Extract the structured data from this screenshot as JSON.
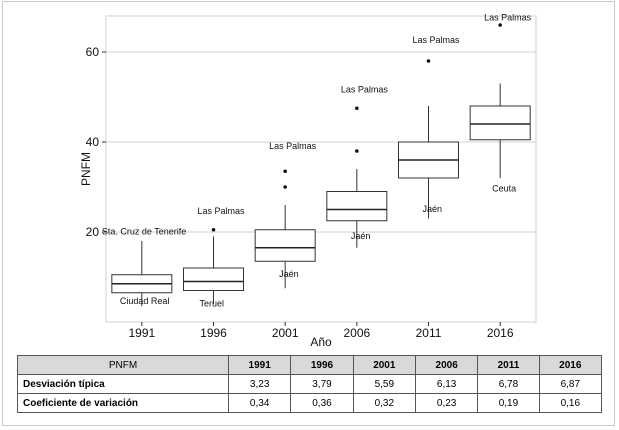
{
  "chart_data": {
    "type": "box",
    "ylabel": "PNFM",
    "xlabel": "Año",
    "ylim": [
      0,
      68
    ],
    "yticks": [
      20,
      40,
      60
    ],
    "grid": true,
    "categories": [
      "1991",
      "1996",
      "2001",
      "2006",
      "2011",
      "2016"
    ],
    "boxes": [
      {
        "year": "1991",
        "whisker_low": 3.5,
        "q1": 6.5,
        "median": 8.5,
        "q3": 10.5,
        "whisker_high": 18,
        "outliers": [],
        "labels": [
          {
            "text": "Sta. Cruz de Tenerife",
            "value": 19.5,
            "dx": -40
          },
          {
            "text": "Ciudad Real",
            "value": 4,
            "dx": -22
          }
        ]
      },
      {
        "year": "1996",
        "whisker_low": 4,
        "q1": 7,
        "median": 9,
        "q3": 12,
        "whisker_high": 19,
        "outliers": [
          20.5
        ],
        "labels": [
          {
            "text": "Las Palmas",
            "value": 24,
            "dx": -16
          },
          {
            "text": "Teruel",
            "value": 3.5,
            "dx": -14
          }
        ]
      },
      {
        "year": "2001",
        "whisker_low": 7.5,
        "q1": 13.5,
        "median": 16.5,
        "q3": 20.5,
        "whisker_high": 26,
        "outliers": [
          30,
          33.5
        ],
        "labels": [
          {
            "text": "Las Palmas",
            "value": 38.5,
            "dx": -16
          },
          {
            "text": "Jaén",
            "value": 10,
            "dx": -6
          }
        ]
      },
      {
        "year": "2006",
        "whisker_low": 16.5,
        "q1": 22.5,
        "median": 25,
        "q3": 29,
        "whisker_high": 34,
        "outliers": [
          38,
          47.5
        ],
        "labels": [
          {
            "text": "Las Palmas",
            "value": 51,
            "dx": -16
          },
          {
            "text": "Jaén",
            "value": 18.5,
            "dx": -6
          }
        ]
      },
      {
        "year": "2011",
        "whisker_low": 23,
        "q1": 32,
        "median": 36,
        "q3": 40,
        "whisker_high": 48,
        "outliers": [
          58
        ],
        "labels": [
          {
            "text": "Las Palmas",
            "value": 62,
            "dx": -16
          },
          {
            "text": "Jaén",
            "value": 24.5,
            "dx": -6
          }
        ]
      },
      {
        "year": "2016",
        "whisker_low": 32,
        "q1": 40.5,
        "median": 44,
        "q3": 48,
        "whisker_high": 53,
        "outliers": [
          66
        ],
        "labels": [
          {
            "text": "Las Palmas",
            "value": 67,
            "dx": -16
          },
          {
            "text": "Ceuta",
            "value": 29,
            "dx": -8
          }
        ]
      }
    ]
  },
  "table": {
    "corner": "PNFM",
    "years": [
      "1991",
      "1996",
      "2001",
      "2006",
      "2011",
      "2016"
    ],
    "rows": [
      {
        "label": "Desviación típica",
        "values": [
          "3,23",
          "3,79",
          "5,59",
          "6,13",
          "6,78",
          "6,87"
        ]
      },
      {
        "label": "Coeficiente de variación",
        "values": [
          "0,34",
          "0,36",
          "0,32",
          "0,23",
          "0,19",
          "0,16"
        ]
      }
    ]
  }
}
